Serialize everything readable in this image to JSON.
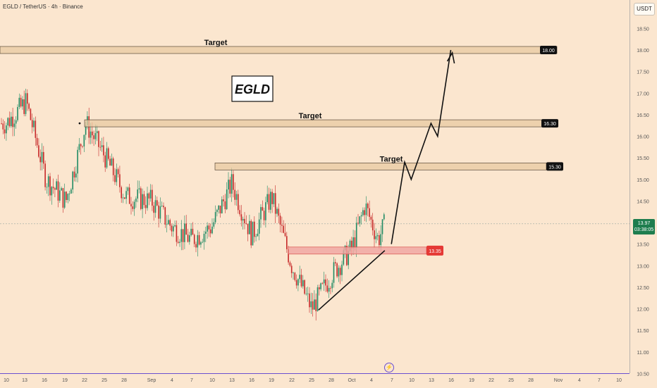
{
  "header": {
    "pair_label": "EGLD / TetherUS · 4h · Binance",
    "currency": "USDT"
  },
  "drawings": {
    "logo_text": "EGLD",
    "target_label": "Target",
    "annotations": [
      {
        "label": "Target",
        "price": 18.0,
        "badge": "18.00"
      },
      {
        "label": "Target",
        "price": 16.3,
        "badge": "16.30"
      },
      {
        "label": "Target",
        "price": 15.3,
        "badge": "15.30"
      }
    ],
    "support": {
      "price": 13.35,
      "badge": "13.35"
    },
    "current_price": "13.97",
    "countdown": "03:38:05"
  },
  "colors": {
    "background": "#fbe6cf",
    "up_candle": "#1f8a63",
    "down_candle": "#c62828",
    "zone_fill": "#e8c9a2",
    "support_fill": "#f0a4a0",
    "support_badge": "#e53935",
    "current_badge": "#1e7d4e",
    "arrow": "#000000"
  },
  "chart_data": {
    "type": "candlestick",
    "pair": "EGLD / TetherUS",
    "timeframe": "4h",
    "exchange": "Binance",
    "y_axis": {
      "ticks": [
        "18.50",
        "18.00",
        "17.50",
        "17.00",
        "16.50",
        "16.00",
        "15.50",
        "15.00",
        "14.50",
        "14.00",
        "13.50",
        "13.00",
        "12.50",
        "12.00",
        "11.50",
        "11.00",
        "10.50"
      ],
      "ylim": [
        10.5,
        18.75
      ]
    },
    "x_axis": {
      "ticks": [
        "10",
        "13",
        "16",
        "19",
        "22",
        "25",
        "28",
        "Sep",
        "4",
        "7",
        "10",
        "13",
        "16",
        "19",
        "22",
        "25",
        "28",
        "Oct",
        "4",
        "7",
        "10",
        "13",
        "16",
        "19",
        "22",
        "25",
        "28",
        "Nov",
        "4",
        "7",
        "10"
      ]
    },
    "price_path": [
      {
        "date": "Aug 10",
        "close": 16.3
      },
      {
        "date": "Aug 13",
        "close": 16.8
      },
      {
        "date": "Aug 16",
        "close": 15.0
      },
      {
        "date": "Aug 19",
        "close": 14.5
      },
      {
        "date": "Aug 22",
        "close": 16.3
      },
      {
        "date": "Aug 25",
        "close": 15.5
      },
      {
        "date": "Aug 28",
        "close": 14.6
      },
      {
        "date": "Sep 1",
        "close": 14.5
      },
      {
        "date": "Sep 4",
        "close": 13.9
      },
      {
        "date": "Sep 7",
        "close": 13.6
      },
      {
        "date": "Sep 10",
        "close": 13.9
      },
      {
        "date": "Sep 13",
        "close": 14.9
      },
      {
        "date": "Sep 16",
        "close": 13.7
      },
      {
        "date": "Sep 19",
        "close": 14.6
      },
      {
        "date": "Sep 22",
        "close": 13.0
      },
      {
        "date": "Sep 25",
        "close": 12.0
      },
      {
        "date": "Sep 28",
        "close": 12.8
      },
      {
        "date": "Oct 1",
        "close": 13.4
      },
      {
        "date": "Oct 3",
        "close": 14.4
      },
      {
        "date": "Oct 5",
        "close": 13.6
      },
      {
        "date": "Oct 6",
        "close": 13.97
      }
    ],
    "projection": [
      {
        "date": "Oct 7",
        "price": 13.5
      },
      {
        "date": "Oct 9",
        "price": 15.4
      },
      {
        "date": "Oct 10",
        "price": 15.0
      },
      {
        "date": "Oct 13",
        "price": 16.3
      },
      {
        "date": "Oct 14",
        "price": 16.0
      },
      {
        "date": "Oct 16",
        "price": 18.0
      }
    ],
    "trendline": [
      {
        "date": "Sep 26",
        "price": 11.97
      },
      {
        "date": "Oct 6",
        "price": 13.35
      }
    ],
    "levels": [
      18.0,
      16.3,
      15.3,
      13.35
    ]
  }
}
